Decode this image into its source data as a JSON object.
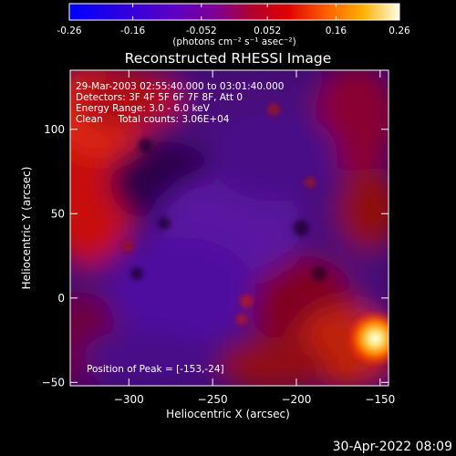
{
  "colorbar": {
    "tick_labels": [
      "-0.26",
      "-0.16",
      "-0.052",
      "0.052",
      "0.16",
      "0.26"
    ],
    "ticks": [
      -0.26,
      -0.16,
      -0.052,
      0.052,
      0.16,
      0.26
    ],
    "range": [
      -0.26,
      0.26
    ],
    "units": "(photons cm⁻² s⁻¹ asec⁻²)",
    "colors": [
      "#0000ff",
      "#5a00d0",
      "#7a00a0",
      "#a00040",
      "#d00000",
      "#ff6000",
      "#ffc000",
      "#ffffe0"
    ]
  },
  "chart_data": {
    "type": "heatmap",
    "title": "Reconstructed RHESSI Image",
    "xlabel": "Heliocentric X (arcsec)",
    "ylabel": "Heliocentric Y (arcsec)",
    "xlim": [
      -335,
      -145
    ],
    "ylim": [
      -52,
      135
    ],
    "x_ticks": [
      -300,
      -250,
      -200,
      -150
    ],
    "y_ticks": [
      -50,
      0,
      50,
      100
    ],
    "x_tick_labels": [
      "−300",
      "−250",
      "−200",
      "−150"
    ],
    "y_tick_labels": [
      "−50",
      "0",
      "50",
      "100"
    ],
    "annotations": [
      "29-Mar-2003 02:55:40.000 to 03:01:40.000",
      "Detectors: 3F 4F 5F 6F 7F 8F, Att 0",
      "Energy Range: 3.0 - 6.0 keV",
      "Clean     Total counts: 3.06E+04"
    ],
    "peak_label": "Position of Peak = [-153,-24]",
    "peak": [
      -153,
      -24
    ]
  },
  "footer_date": "30-Apr-2022 08:09"
}
